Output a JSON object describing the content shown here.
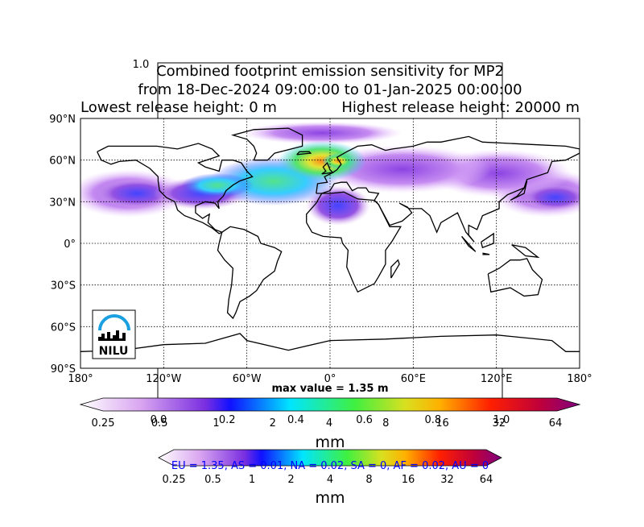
{
  "title_lines": [
    "Combined footprint emission sensitivity for MP2",
    "from 18-Dec-2024 09:00:00 to 01-Jan-2025 00:00:00"
  ],
  "release": {
    "lowest": "Lowest release height: 0 m",
    "highest": "Highest release height: 20000 m"
  },
  "map": {
    "lat_labels": [
      "90°N",
      "60°N",
      "30°N",
      "0°",
      "30°S",
      "60°S",
      "90°S"
    ],
    "lon_labels": [
      "180°",
      "120°W",
      "60°W",
      "0°",
      "60°E",
      "120°E",
      "180°"
    ],
    "logo": "NILU"
  },
  "max_value": "max value = 1.35 m",
  "colorbar": {
    "ticks": [
      "0.25",
      "0.5",
      "1",
      "2",
      "4",
      "8",
      "16",
      "32",
      "64"
    ],
    "unit": "mm"
  },
  "colorbar2": {
    "ticks": [
      "0.25",
      "0.5",
      "1",
      "2",
      "4",
      "8",
      "16",
      "32",
      "64"
    ],
    "unit": "mm"
  },
  "background_axes": {
    "y_tick": "1.0",
    "x_ticks": [
      "0.0",
      "0.2",
      "0.4",
      "0.6",
      "0.8",
      "1.0"
    ]
  },
  "region_summary": "EU = 1.35,  AS = 0.01,  NA = 0.02,  SA = 0,  AF = 0.02,  AU = 0"
}
